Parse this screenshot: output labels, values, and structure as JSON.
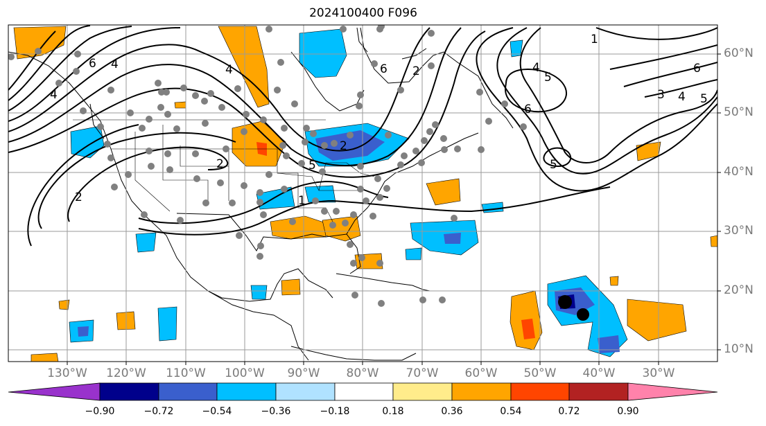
{
  "title": "2024100400 F096",
  "lat_labels": [
    "60°N",
    "50°N",
    "40°N",
    "30°N",
    "20°N",
    "10°N"
  ],
  "lon_labels": [
    "130°W",
    "120°W",
    "110°W",
    "100°W",
    "90°W",
    "80°W",
    "70°W",
    "60°W",
    "50°W",
    "40°W",
    "30°W"
  ],
  "colorbar": {
    "ticks": [
      "−0.90",
      "−0.72",
      "−0.54",
      "−0.36",
      "−0.18",
      "0.18",
      "0.36",
      "0.54",
      "0.72",
      "0.90"
    ],
    "colors": [
      "#9932cc",
      "#00008b",
      "#3a5fcd",
      "#00bfff",
      "#b0e2ff",
      "#ffffff",
      "#ffec8b",
      "#ffa500",
      "#ff4500",
      "#b22222",
      "#ff82ab"
    ]
  },
  "contour_labels": [
    "6",
    "4",
    "4",
    "2",
    "4",
    "6",
    "2",
    "1",
    "4",
    "5",
    "6",
    "5",
    "3",
    "4",
    "5",
    "6",
    "2",
    "2",
    "5",
    "1"
  ],
  "colors": {
    "land": "#ffffff",
    "grid": "#9a9a9a",
    "station": "#808080",
    "contour": "#000000"
  }
}
